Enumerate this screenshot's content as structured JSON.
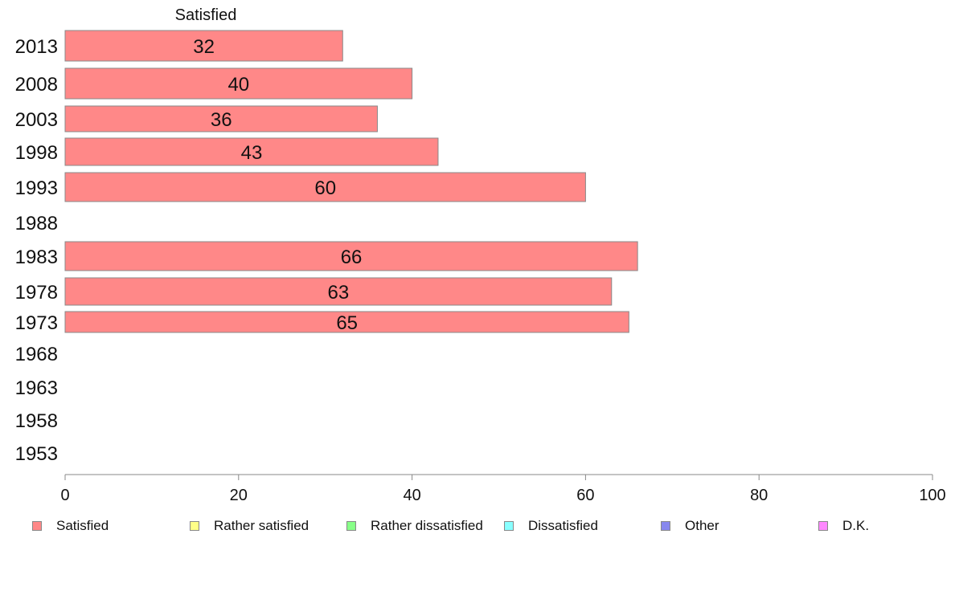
{
  "chart_data": {
    "type": "bar",
    "orientation": "horizontal",
    "stacked": true,
    "categories": [
      "2013",
      "2008",
      "2003",
      "1998",
      "1993",
      "1988",
      "1983",
      "1978",
      "1973",
      "1968",
      "1963",
      "1958",
      "1953"
    ],
    "series": [
      {
        "name": "Satisfied",
        "color": "#ff8888",
        "values": [
          32,
          40,
          36,
          43,
          60,
          null,
          66,
          63,
          65,
          null,
          null,
          null,
          null
        ]
      },
      {
        "name": "Rather satisfied",
        "color": "#ffff88",
        "values": [
          null,
          null,
          null,
          null,
          null,
          null,
          null,
          null,
          null,
          null,
          null,
          null,
          null
        ]
      },
      {
        "name": "Rather dissatisfied",
        "color": "#88ff88",
        "values": [
          null,
          null,
          null,
          null,
          null,
          null,
          null,
          null,
          null,
          null,
          null,
          null,
          null
        ]
      },
      {
        "name": "Dissatisfied",
        "color": "#88ffff",
        "values": [
          null,
          null,
          null,
          null,
          null,
          null,
          null,
          null,
          null,
          null,
          null,
          null,
          null
        ]
      },
      {
        "name": "Other",
        "color": "#8888ee",
        "values": [
          null,
          null,
          null,
          null,
          null,
          null,
          null,
          null,
          null,
          null,
          null,
          null,
          null
        ]
      },
      {
        "name": "D.K.",
        "color": "#ff88ff",
        "values": [
          null,
          null,
          null,
          null,
          null,
          null,
          null,
          null,
          null,
          null,
          null,
          null,
          null
        ]
      }
    ],
    "column_header": "Satisfied",
    "xlim": [
      0,
      100
    ],
    "xticks": [
      0,
      20,
      40,
      60,
      80,
      100
    ],
    "grid": false,
    "legend_position": "bottom"
  }
}
